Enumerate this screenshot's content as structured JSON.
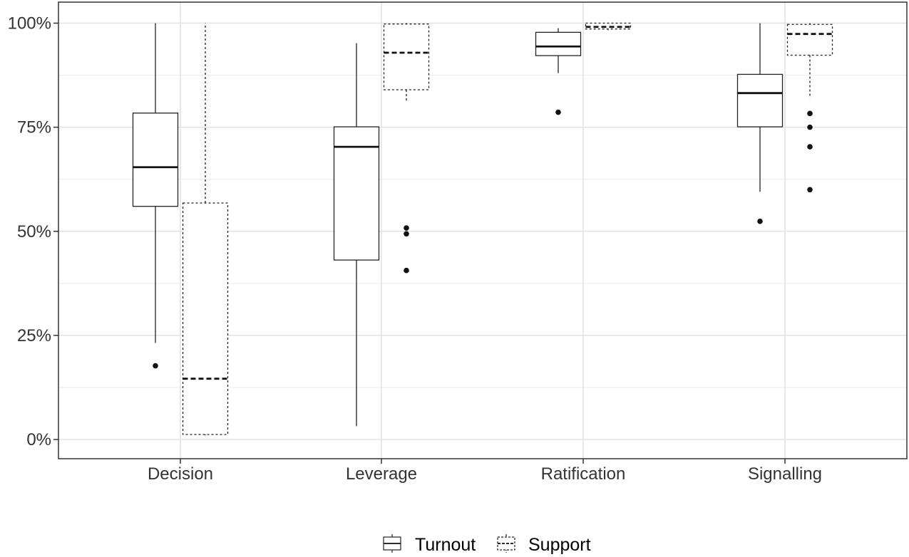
{
  "chart_data": {
    "type": "boxplot",
    "categories": [
      "Decision",
      "Leverage",
      "Ratification",
      "Signalling"
    ],
    "y_ticks": [
      "0%",
      "25%",
      "50%",
      "75%",
      "100%"
    ],
    "ylim": [
      0,
      100
    ],
    "y_unit": "%",
    "grid": true,
    "legend_position": "bottom",
    "series": [
      {
        "name": "Turnout",
        "line_style": "solid",
        "boxes": [
          {
            "category": "Decision",
            "whisker_low": 23.2,
            "q1": 56.0,
            "median": 65.4,
            "q3": 78.4,
            "whisker_high": 100.0,
            "outliers": [
              17.7
            ]
          },
          {
            "category": "Leverage",
            "whisker_low": 3.2,
            "q1": 43.1,
            "median": 70.3,
            "q3": 75.1,
            "whisker_high": 95.2,
            "outliers": []
          },
          {
            "category": "Ratification",
            "whisker_low": 88.0,
            "q1": 92.2,
            "median": 94.4,
            "q3": 97.8,
            "whisker_high": 98.8,
            "outliers": [
              78.6
            ]
          },
          {
            "category": "Signalling",
            "whisker_low": 59.5,
            "q1": 75.1,
            "median": 83.2,
            "q3": 87.7,
            "whisker_high": 100.0,
            "outliers": [
              52.4
            ]
          }
        ]
      },
      {
        "name": "Support",
        "line_style": "dashed",
        "boxes": [
          {
            "category": "Decision",
            "whisker_low": 1.0,
            "q1": 1.2,
            "median": 14.6,
            "q3": 56.8,
            "whisker_high": 100.0,
            "outliers": []
          },
          {
            "category": "Leverage",
            "whisker_low": 81.0,
            "q1": 84.0,
            "median": 92.9,
            "q3": 99.8,
            "whisker_high": 100.0,
            "outliers": [
              50.8,
              49.4,
              40.6
            ]
          },
          {
            "category": "Ratification",
            "whisker_low": 98.3,
            "q1": 98.6,
            "median": 99.1,
            "q3": 100.0,
            "whisker_high": 100.0,
            "outliers": []
          },
          {
            "category": "Signalling",
            "whisker_low": 82.0,
            "q1": 92.3,
            "median": 97.4,
            "q3": 99.7,
            "whisker_high": 100.0,
            "outliers": [
              78.3,
              75.0,
              70.3,
              60.0
            ]
          }
        ]
      }
    ]
  }
}
